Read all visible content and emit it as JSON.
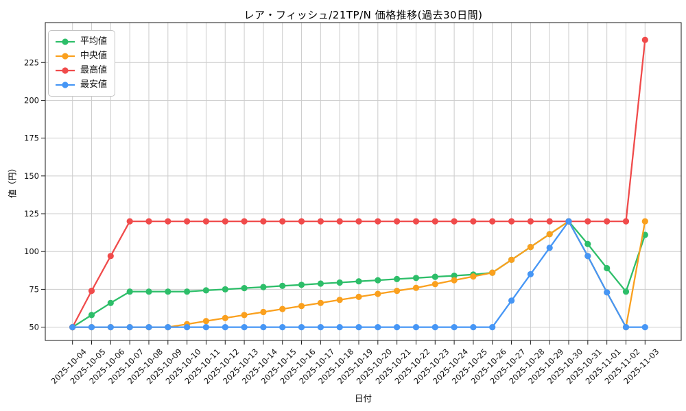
{
  "chart_data": {
    "type": "line",
    "title": "レア・フィッシュ/21TP/N 価格推移(過去30日間)",
    "xlabel": "日付",
    "ylabel": "値（円）",
    "x_tick_labels": [
      "2025-10-04",
      "2025-10-05",
      "2025-10-06",
      "2025-10-07",
      "2025-10-08",
      "2025-10-09",
      "2025-10-10",
      "2025-10-11",
      "2025-10-12",
      "2025-10-13",
      "2025-10-14",
      "2025-10-15",
      "2025-10-16",
      "2025-10-17",
      "2025-10-18",
      "2025-10-19",
      "2025-10-20",
      "2025-10-21",
      "2025-10-22",
      "2025-10-23",
      "2025-10-24",
      "2025-10-25",
      "2025-10-26",
      "2025-10-27",
      "2025-10-28",
      "2025-10-29",
      "2025-10-30",
      "2025-10-31",
      "2025-11-01",
      "2025-11-02",
      "2025-11-03"
    ],
    "y_ticks": [
      50,
      75,
      100,
      125,
      150,
      175,
      200,
      225
    ],
    "ylim": [
      41.2,
      251.4
    ],
    "grid": true,
    "legend_position": "upper-left",
    "series": [
      {
        "name": "平均値",
        "color": "#2dbe69",
        "values": [
          50,
          58,
          66,
          73.5,
          73.5,
          73.5,
          73.5,
          74.3,
          75,
          75.8,
          76.5,
          77.3,
          78,
          78.8,
          79.5,
          80.3,
          81,
          81.8,
          82.5,
          83.3,
          84,
          84.8,
          86,
          94.5,
          103,
          111.5,
          120,
          105,
          89,
          73.5,
          111
        ]
      },
      {
        "name": "中央値",
        "color": "#faa01e",
        "values": [
          50,
          50,
          50,
          50,
          50,
          50,
          52,
          54,
          56,
          58,
          60,
          62,
          64,
          66,
          68,
          70,
          72,
          74,
          76,
          78.5,
          81,
          83.5,
          86,
          94.5,
          103,
          111.5,
          120,
          97,
          73,
          50,
          120
        ]
      },
      {
        "name": "最高値",
        "color": "#f04b4b",
        "values": [
          50,
          74,
          97,
          120,
          120,
          120,
          120,
          120,
          120,
          120,
          120,
          120,
          120,
          120,
          120,
          120,
          120,
          120,
          120,
          120,
          120,
          120,
          120,
          120,
          120,
          120,
          120,
          120,
          120,
          120,
          240
        ]
      },
      {
        "name": "最安値",
        "color": "#4696f5",
        "values": [
          50,
          50,
          50,
          50,
          50,
          50,
          50,
          50,
          50,
          50,
          50,
          50,
          50,
          50,
          50,
          50,
          50,
          50,
          50,
          50,
          50,
          50,
          50,
          67.5,
          85,
          102.5,
          120,
          97,
          73,
          50,
          50
        ]
      }
    ],
    "colors": {
      "grid": "#cccccc",
      "axis": "#1a1a1a",
      "background": "#ffffff"
    }
  }
}
